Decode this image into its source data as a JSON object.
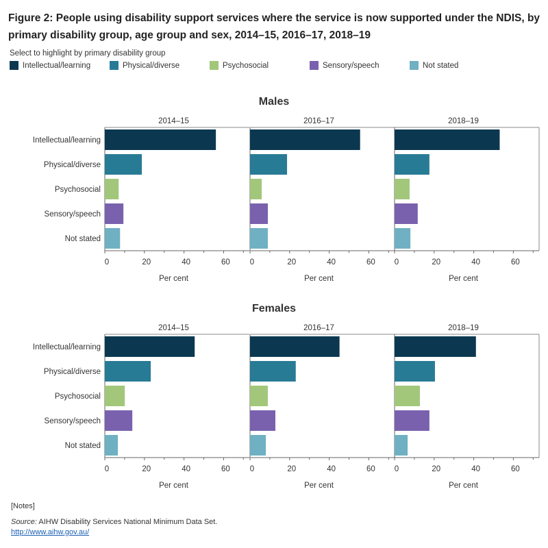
{
  "title": "Figure 2: People using disability support services where the service is now supported under the NDIS, by primary disability group, age group and sex, 2014–15, 2016–17, 2018–19",
  "legend": {
    "title": "Select to highlight by primary disability group"
  },
  "notes": "[Notes]",
  "source": {
    "label": "Source:",
    "text": " AIHW Disability Services National Minimum Data Set.",
    "link": "http://www.aihw.gov.au/"
  },
  "chart_data": {
    "type": "bar",
    "orientation": "horizontal",
    "categories": [
      "Intellectual/learning",
      "Physical/diverse",
      "Psychosocial",
      "Sensory/speech",
      "Not stated"
    ],
    "colors": [
      "#0b3850",
      "#287b95",
      "#a2c77b",
      "#7961ae",
      "#6fb0c3"
    ],
    "xlabel": "Per cent",
    "xlim": [
      0,
      73
    ],
    "xticks": [
      0,
      20,
      40,
      60
    ],
    "years": [
      "2014–15",
      "2016–17",
      "2018–19"
    ],
    "panels": [
      {
        "sex": "Males",
        "series": [
          {
            "year": "2014–15",
            "values": [
              56.1,
              18.7,
              7.0,
              9.4,
              7.7
            ]
          },
          {
            "year": "2016–17",
            "values": [
              55.6,
              18.7,
              5.9,
              9.0,
              9.0
            ]
          },
          {
            "year": "2018–19",
            "values": [
              53.1,
              17.6,
              7.6,
              11.7,
              8.0
            ]
          }
        ]
      },
      {
        "sex": "Females",
        "series": [
          {
            "year": "2014–15",
            "values": [
              45.4,
              23.2,
              10.1,
              13.9,
              6.6
            ]
          },
          {
            "year": "2016–17",
            "values": [
              45.2,
              23.1,
              9.0,
              12.8,
              8.0
            ]
          },
          {
            "year": "2018–19",
            "values": [
              41.1,
              20.4,
              12.8,
              17.6,
              6.6
            ]
          }
        ]
      }
    ]
  }
}
